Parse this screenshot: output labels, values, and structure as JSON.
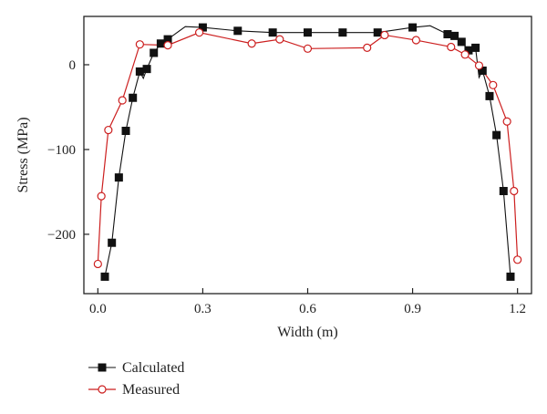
{
  "chart_data": {
    "type": "line",
    "xlabel": "Width (m)",
    "ylabel": "Stress (MPa)",
    "xlim": [
      -0.04,
      1.24
    ],
    "ylim": [
      -270,
      57
    ],
    "xticks": [
      0.0,
      0.3,
      0.6,
      0.9,
      1.2
    ],
    "xtick_labels": [
      "0.0",
      "0.3",
      "0.6",
      "0.9",
      "1.2"
    ],
    "yticks": [
      0,
      -100,
      -200
    ],
    "ytick_labels": [
      "0",
      "−100",
      "−200"
    ],
    "grid": false,
    "legend_position": "bottom-left",
    "series": [
      {
        "name": "Calculated",
        "color": "#111111",
        "marker": "filled-square",
        "line_x": [
          0.02,
          0.04,
          0.06,
          0.08,
          0.1,
          0.12,
          0.13,
          0.14,
          0.16,
          0.18,
          0.2,
          0.25,
          0.3,
          0.4,
          0.5,
          0.6,
          0.7,
          0.8,
          0.9,
          0.95,
          1.0,
          1.02,
          1.04,
          1.06,
          1.08,
          1.09,
          1.1,
          1.12,
          1.14,
          1.16,
          1.18
        ],
        "line_y": [
          -250,
          -210,
          -133,
          -78,
          -39,
          -8,
          -16,
          -5,
          14,
          25,
          30,
          45,
          44,
          40,
          38,
          38,
          38,
          38,
          44,
          46,
          36,
          34,
          27,
          17,
          20,
          -15,
          -7,
          -37,
          -83,
          -149,
          -250
        ],
        "x": [
          0.02,
          0.04,
          0.06,
          0.08,
          0.1,
          0.12,
          0.14,
          0.16,
          0.18,
          0.2,
          0.3,
          0.4,
          0.5,
          0.6,
          0.7,
          0.8,
          0.9,
          1.0,
          1.02,
          1.04,
          1.06,
          1.08,
          1.1,
          1.12,
          1.14,
          1.16,
          1.18
        ],
        "y": [
          -250,
          -210,
          -133,
          -78,
          -39,
          -8,
          -5,
          14,
          25,
          30,
          44,
          40,
          38,
          38,
          38,
          38,
          44,
          36,
          34,
          27,
          17,
          20,
          -7,
          -37,
          -83,
          -149,
          -250
        ]
      },
      {
        "name": "Measured",
        "color": "#cc1f1f",
        "marker": "open-circle",
        "x": [
          0.0,
          0.01,
          0.03,
          0.07,
          0.12,
          0.2,
          0.29,
          0.44,
          0.52,
          0.6,
          0.77,
          0.82,
          0.91,
          1.01,
          1.05,
          1.09,
          1.13,
          1.17,
          1.19,
          1.2
        ],
        "y": [
          -235,
          -155,
          -77,
          -42,
          24,
          23,
          38,
          25,
          30,
          19,
          20,
          35,
          29,
          21,
          12,
          -1,
          -24,
          -67,
          -149,
          -230
        ]
      }
    ]
  }
}
